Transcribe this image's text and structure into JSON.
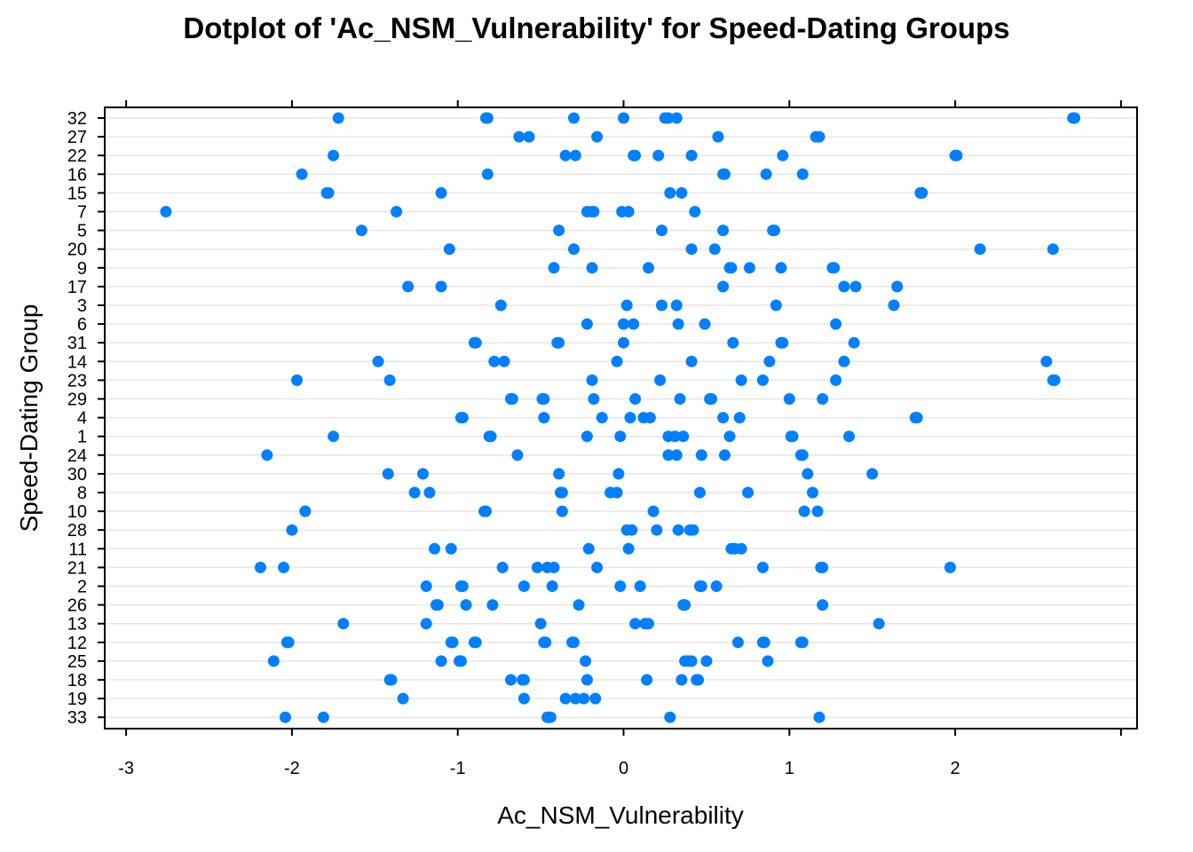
{
  "chart_data": {
    "type": "scatter",
    "title": "Dotplot of 'Ac_NSM_Vulnerability' for Speed-Dating Groups",
    "xlabel": "Ac_NSM_Vulnerability",
    "ylabel": "Speed-Dating Group",
    "xlim": [
      -3.1,
      3.1
    ],
    "x_ticks": [
      -3,
      -2,
      -1,
      0,
      1,
      2
    ],
    "grid": true,
    "marker_color": "#0080ff",
    "grid_color": "#e6e6e6",
    "categories": [
      "32",
      "27",
      "22",
      "16",
      "15",
      "7",
      "5",
      "20",
      "9",
      "17",
      "3",
      "6",
      "31",
      "14",
      "23",
      "29",
      "4",
      "1",
      "24",
      "30",
      "8",
      "10",
      "28",
      "11",
      "21",
      "2",
      "26",
      "13",
      "12",
      "25",
      "18",
      "19",
      "33"
    ],
    "groups": [
      {
        "group": "32",
        "values": [
          -1.72,
          -0.83,
          -0.82,
          -0.3,
          0.0,
          0.25,
          0.27,
          0.32,
          2.71,
          2.72
        ]
      },
      {
        "group": "27",
        "values": [
          -0.63,
          -0.57,
          -0.16,
          0.57,
          1.16,
          1.18
        ]
      },
      {
        "group": "22",
        "values": [
          -1.75,
          -0.35,
          -0.29,
          0.06,
          0.07,
          0.21,
          0.41,
          0.96,
          2.0,
          2.01
        ]
      },
      {
        "group": "16",
        "values": [
          -1.94,
          -0.82,
          0.6,
          0.61,
          0.86,
          1.08
        ]
      },
      {
        "group": "15",
        "values": [
          -1.79,
          -1.78,
          -1.1,
          0.28,
          0.35,
          1.79,
          1.8
        ]
      },
      {
        "group": "7",
        "values": [
          -2.76,
          -1.37,
          -0.22,
          -0.19,
          -0.18,
          -0.01,
          0.03,
          0.43
        ]
      },
      {
        "group": "5",
        "values": [
          -1.58,
          -0.39,
          0.23,
          0.6,
          0.9,
          0.91
        ]
      },
      {
        "group": "20",
        "values": [
          -1.05,
          -0.3,
          0.41,
          0.55,
          2.15,
          2.59
        ]
      },
      {
        "group": "9",
        "values": [
          -0.42,
          -0.19,
          0.15,
          0.64,
          0.65,
          0.76,
          0.95,
          1.26,
          1.27
        ]
      },
      {
        "group": "17",
        "values": [
          -1.3,
          -1.1,
          0.6,
          1.33,
          1.4,
          1.65
        ]
      },
      {
        "group": "3",
        "values": [
          -0.74,
          0.02,
          0.23,
          0.32,
          0.92,
          1.63
        ]
      },
      {
        "group": "6",
        "values": [
          -0.22,
          0.0,
          0.06,
          0.33,
          0.49,
          1.28
        ]
      },
      {
        "group": "31",
        "values": [
          -0.9,
          -0.89,
          -0.4,
          -0.39,
          0.0,
          0.66,
          0.95,
          0.96,
          1.39
        ]
      },
      {
        "group": "14",
        "values": [
          -1.48,
          -0.78,
          -0.72,
          -0.04,
          0.41,
          0.88,
          1.33,
          2.55
        ]
      },
      {
        "group": "23",
        "values": [
          -1.97,
          -1.41,
          -0.19,
          0.22,
          0.71,
          0.84,
          1.28,
          2.59,
          2.6
        ]
      },
      {
        "group": "29",
        "values": [
          -0.68,
          -0.67,
          -0.49,
          -0.48,
          -0.18,
          0.07,
          0.34,
          0.52,
          0.53,
          1.0,
          1.2
        ]
      },
      {
        "group": "4",
        "values": [
          -0.98,
          -0.97,
          -0.48,
          -0.13,
          0.04,
          0.12,
          0.16,
          0.6,
          0.7,
          1.76,
          1.77
        ]
      },
      {
        "group": "1",
        "values": [
          -1.75,
          -0.81,
          -0.8,
          -0.22,
          -0.02,
          0.27,
          0.31,
          0.36,
          0.64,
          1.01,
          1.02,
          1.36
        ]
      },
      {
        "group": "24",
        "values": [
          -2.15,
          -0.64,
          0.27,
          0.32,
          0.47,
          0.61,
          1.07,
          1.08
        ]
      },
      {
        "group": "30",
        "values": [
          -1.42,
          -1.21,
          -0.39,
          -0.03,
          1.11,
          1.5
        ]
      },
      {
        "group": "8",
        "values": [
          -1.26,
          -1.17,
          -0.38,
          -0.37,
          -0.08,
          -0.04,
          0.46,
          0.75,
          1.14
        ]
      },
      {
        "group": "10",
        "values": [
          -1.92,
          -0.84,
          -0.83,
          -0.37,
          0.18,
          1.09,
          1.17
        ]
      },
      {
        "group": "28",
        "values": [
          -2.0,
          0.02,
          0.05,
          0.2,
          0.33,
          0.4,
          0.42
        ]
      },
      {
        "group": "11",
        "values": [
          -1.14,
          -1.04,
          -0.21,
          0.03,
          0.65,
          0.67,
          0.71
        ]
      },
      {
        "group": "21",
        "values": [
          -2.19,
          -2.05,
          -0.73,
          -0.52,
          -0.46,
          -0.42,
          -0.16,
          0.84,
          1.19,
          1.2,
          1.97
        ]
      },
      {
        "group": "2",
        "values": [
          -1.19,
          -0.98,
          -0.97,
          -0.6,
          -0.43,
          -0.02,
          0.1,
          0.46,
          0.47,
          0.56
        ]
      },
      {
        "group": "26",
        "values": [
          -1.13,
          -1.12,
          -0.95,
          -0.79,
          -0.27,
          0.36,
          0.37,
          1.2
        ]
      },
      {
        "group": "13",
        "values": [
          -1.69,
          -1.19,
          -0.5,
          0.07,
          0.13,
          0.15,
          1.54
        ]
      },
      {
        "group": "12",
        "values": [
          -2.03,
          -2.02,
          -1.04,
          -1.03,
          -0.9,
          -0.89,
          -0.48,
          -0.47,
          -0.31,
          -0.3,
          0.69,
          0.84,
          0.85,
          1.07,
          1.08
        ]
      },
      {
        "group": "25",
        "values": [
          -2.11,
          -1.1,
          -0.99,
          -0.98,
          -0.23,
          0.37,
          0.39,
          0.41,
          0.5,
          0.87
        ]
      },
      {
        "group": "18",
        "values": [
          -1.41,
          -1.4,
          -0.68,
          -0.61,
          -0.6,
          -0.22,
          0.14,
          0.35,
          0.44,
          0.45
        ]
      },
      {
        "group": "19",
        "values": [
          -1.33,
          -0.6,
          -0.35,
          -0.29,
          -0.24,
          -0.17
        ]
      },
      {
        "group": "33",
        "values": [
          -2.04,
          -1.81,
          -0.46,
          -0.45,
          -0.44,
          0.28,
          1.18
        ]
      }
    ]
  }
}
